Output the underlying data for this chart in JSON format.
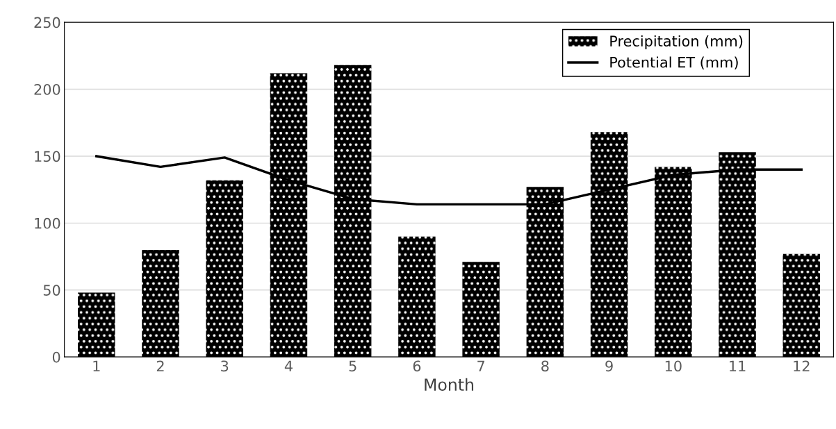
{
  "chart_data": {
    "type": "bar",
    "xlabel": "Month",
    "categories": [
      "1",
      "2",
      "3",
      "4",
      "5",
      "6",
      "7",
      "8",
      "9",
      "10",
      "11",
      "12"
    ],
    "series": [
      {
        "name": "Precipitation (mm)",
        "color": "#000000",
        "values": [
          48,
          80,
          132,
          212,
          218,
          90,
          71,
          127,
          168,
          142,
          153,
          77
        ]
      },
      {
        "name": "Potential ET (mm)",
        "type": "line",
        "color": "#000000",
        "values": [
          150,
          142,
          149,
          132,
          118,
          114,
          114,
          114,
          125,
          136,
          140,
          140
        ]
      }
    ],
    "ylim": [
      0,
      250
    ],
    "yticks": [
      0,
      50,
      100,
      150,
      200,
      250
    ],
    "grid": "y",
    "legend": "top right",
    "marker": "none",
    "line_style": "solid"
  }
}
